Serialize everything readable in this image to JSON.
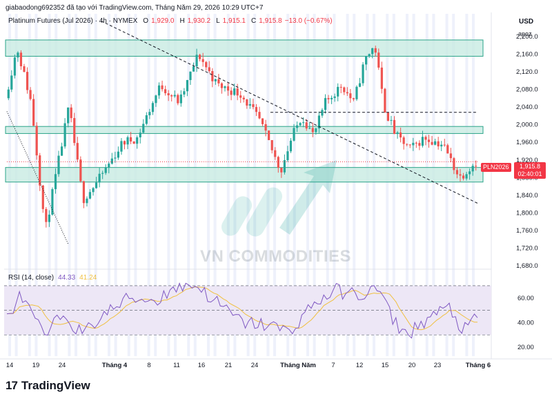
{
  "header": {
    "attribution": "giabaodong692352 đã tạo với TradingView.com, Tháng Năm 29, 2026 10:29 UTC+7"
  },
  "legend": {
    "symbol": "Platinum Futures (Jul 2026) · 4h · NYMEX",
    "open_key": "O",
    "open": "1,929.0",
    "high_key": "H",
    "high": "1,930.2",
    "low_key": "L",
    "low": "1,915.1",
    "close_key": "C",
    "close": "1,915.8",
    "change": "−13.0 (−0.67%)"
  },
  "price_axis": {
    "currency": "USD",
    "mode": "apoz"
  },
  "last_price": {
    "ticker": "PLN2026",
    "value": "1,915.8",
    "countdown": "02:40:01"
  },
  "rsi": {
    "title": "RSI (14, close)",
    "value": "44.33",
    "ma_value": "41.24"
  },
  "watermark": "VN COMMODITIES",
  "brand": {
    "logo_mark": "17",
    "name": "TradingView"
  },
  "colors": {
    "up": "#26a69a",
    "down": "#ef5350",
    "zone_fill": "#c8ebe2",
    "zone_border": "#2aa388",
    "rsi_line": "#7e57c2",
    "rsi_ma": "#f0c040",
    "rsi_band": "#ede7f6",
    "session_stripe": "#eef1fb",
    "last_price": "#f23645"
  },
  "chart_data": {
    "type": "candlestick",
    "timeframe": "4h",
    "ylim": [
      1660,
      2220
    ],
    "y_ticks": [
      1680,
      1720,
      1760,
      1800,
      1840,
      1880,
      1920,
      1960,
      2000,
      2040,
      2080,
      2120,
      2160,
      2200
    ],
    "y_tick_labels": [
      "1,680.0",
      "1,720.0",
      "1,760.0",
      "1,800.0",
      "1,840.0",
      "1,880.0",
      "1,920.0",
      "1,960.0",
      "2,000.0",
      "2,040.0",
      "2,080.0",
      "2,120.0",
      "2,160.0",
      "2,200.0"
    ],
    "x_ticks": [
      "14",
      "19",
      "24",
      "Tháng 4",
      "8",
      "11",
      "16",
      "21",
      "24",
      "Tháng Năm",
      "7",
      "12",
      "15",
      "20",
      "23",
      "Tháng 6"
    ],
    "price_path": [
      {
        "t": 0,
        "p": 2060
      },
      {
        "t": 0.025,
        "p": 2175
      },
      {
        "t": 0.055,
        "p": 2050
      },
      {
        "t": 0.085,
        "p": 1760
      },
      {
        "t": 0.11,
        "p": 1900
      },
      {
        "t": 0.135,
        "p": 2040
      },
      {
        "t": 0.165,
        "p": 1830
      },
      {
        "t": 0.195,
        "p": 1870
      },
      {
        "t": 0.25,
        "p": 1960
      },
      {
        "t": 0.28,
        "p": 1970
      },
      {
        "t": 0.33,
        "p": 2090
      },
      {
        "t": 0.37,
        "p": 2050
      },
      {
        "t": 0.41,
        "p": 2160
      },
      {
        "t": 0.45,
        "p": 2090
      },
      {
        "t": 0.5,
        "p": 2070
      },
      {
        "t": 0.54,
        "p": 2010
      },
      {
        "t": 0.585,
        "p": 1895
      },
      {
        "t": 0.61,
        "p": 1975
      },
      {
        "t": 0.63,
        "p": 2020
      },
      {
        "t": 0.655,
        "p": 1975
      },
      {
        "t": 0.68,
        "p": 2050
      },
      {
        "t": 0.715,
        "p": 2090
      },
      {
        "t": 0.74,
        "p": 2050
      },
      {
        "t": 0.765,
        "p": 2150
      },
      {
        "t": 0.785,
        "p": 2180
      },
      {
        "t": 0.805,
        "p": 2040
      },
      {
        "t": 0.83,
        "p": 1975
      },
      {
        "t": 0.86,
        "p": 1945
      },
      {
        "t": 0.89,
        "p": 1970
      },
      {
        "t": 0.93,
        "p": 1955
      },
      {
        "t": 0.965,
        "p": 1880
      },
      {
        "t": 1.0,
        "p": 1916
      }
    ],
    "zones": [
      {
        "from": 2155,
        "to": 2192
      },
      {
        "from": 1980,
        "to": 1996
      },
      {
        "from": 1870,
        "to": 1903
      }
    ],
    "trendlines": [
      {
        "from": {
          "t": 0.2,
          "p": 2235
        },
        "to": {
          "t": 1.0,
          "p": 1822
        },
        "style": "dashed"
      },
      {
        "from": {
          "t": 0.0,
          "p": 2030
        },
        "to": {
          "t": 0.13,
          "p": 1730
        },
        "style": "dotted"
      }
    ],
    "levels": [
      {
        "price": 2028,
        "from_t": 0.56,
        "to_t": 1.0,
        "style": "dashed"
      },
      {
        "price": 1916,
        "from_t": 0.0,
        "to_t": 1.0,
        "style": "dotted"
      }
    ],
    "rsi": {
      "ylim": [
        15,
        75
      ],
      "ticks": [
        20,
        40,
        60
      ],
      "band": [
        30,
        70
      ],
      "mid": 50,
      "path": [
        {
          "t": 0,
          "v": 45
        },
        {
          "t": 0.03,
          "v": 62
        },
        {
          "t": 0.08,
          "v": 28
        },
        {
          "t": 0.12,
          "v": 48
        },
        {
          "t": 0.16,
          "v": 30
        },
        {
          "t": 0.2,
          "v": 45
        },
        {
          "t": 0.26,
          "v": 60
        },
        {
          "t": 0.32,
          "v": 58
        },
        {
          "t": 0.35,
          "v": 68
        },
        {
          "t": 0.4,
          "v": 71
        },
        {
          "t": 0.45,
          "v": 55
        },
        {
          "t": 0.5,
          "v": 40
        },
        {
          "t": 0.56,
          "v": 38
        },
        {
          "t": 0.6,
          "v": 32
        },
        {
          "t": 0.65,
          "v": 55
        },
        {
          "t": 0.7,
          "v": 66
        },
        {
          "t": 0.75,
          "v": 62
        },
        {
          "t": 0.79,
          "v": 68
        },
        {
          "t": 0.82,
          "v": 42
        },
        {
          "t": 0.85,
          "v": 30
        },
        {
          "t": 0.9,
          "v": 45
        },
        {
          "t": 0.94,
          "v": 52
        },
        {
          "t": 0.97,
          "v": 33
        },
        {
          "t": 1.0,
          "v": 44
        }
      ]
    }
  }
}
